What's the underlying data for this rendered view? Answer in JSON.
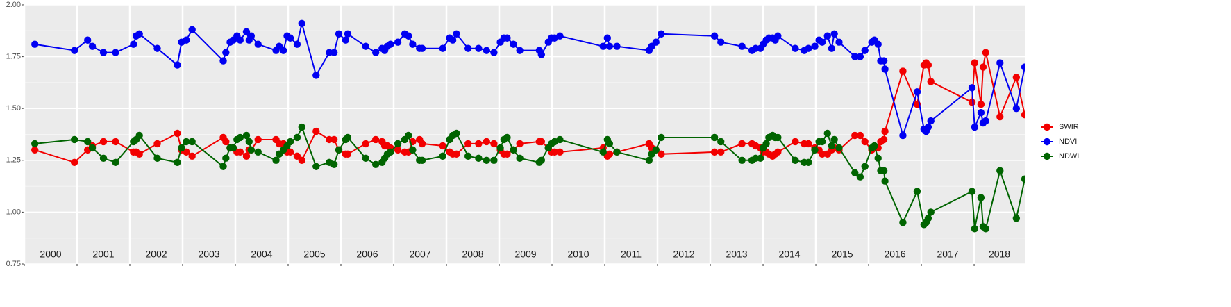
{
  "chart_data": {
    "type": "line",
    "x": [
      2000.2,
      2000.95,
      2001.2,
      2001.29,
      2001.5,
      2001.73,
      2002.07,
      2002.12,
      2002.18,
      2002.52,
      2002.9,
      2002.98,
      2003.07,
      2003.18,
      2003.77,
      2003.82,
      2003.9,
      2003.96,
      2004.03,
      2004.09,
      2004.21,
      2004.26,
      2004.3,
      2004.43,
      2004.77,
      2004.83,
      2004.91,
      2004.98,
      2005.04,
      2005.17,
      2005.26,
      2005.53,
      2005.78,
      2005.87,
      2005.96,
      2006.09,
      2006.13,
      2006.47,
      2006.66,
      2006.78,
      2006.83,
      2006.88,
      2006.94,
      2007.08,
      2007.21,
      2007.28,
      2007.36,
      2007.49,
      2007.54,
      2007.93,
      2008.06,
      2008.12,
      2008.19,
      2008.41,
      2008.61,
      2008.76,
      2008.9,
      2009.02,
      2009.09,
      2009.15,
      2009.27,
      2009.39,
      2009.76,
      2009.8,
      2009.93,
      2009.99,
      2010.05,
      2010.15,
      2010.97,
      2011.05,
      2011.09,
      2011.23,
      2011.84,
      2011.89,
      2011.97,
      2012.07,
      2013.08,
      2013.2,
      2013.6,
      2013.79,
      2013.86,
      2013.95,
      2014.0,
      2014.06,
      2014.11,
      2014.18,
      2014.23,
      2014.28,
      2014.61,
      2014.78,
      2014.86,
      2014.98,
      2015.06,
      2015.12,
      2015.22,
      2015.3,
      2015.35,
      2015.44,
      2015.74,
      2015.84,
      2015.93,
      2016.06,
      2016.11,
      2016.18,
      2016.23,
      2016.29,
      2016.31,
      2016.65,
      2016.92,
      2017.05,
      2017.09,
      2017.13,
      2017.18,
      2017.96,
      2018.01,
      2018.13,
      2018.17,
      2018.22,
      2018.49,
      2018.8,
      2018.96
    ],
    "series": [
      {
        "name": "SWIR",
        "color": "#f20000",
        "values": [
          1.3,
          1.24,
          1.3,
          1.32,
          1.34,
          1.34,
          1.29,
          1.29,
          1.28,
          1.33,
          1.38,
          1.3,
          1.29,
          1.27,
          1.36,
          1.34,
          1.31,
          1.31,
          1.29,
          1.29,
          1.27,
          1.3,
          1.3,
          1.35,
          1.35,
          1.33,
          1.33,
          1.29,
          1.29,
          1.27,
          1.25,
          1.39,
          1.35,
          1.35,
          1.3,
          1.28,
          1.28,
          1.33,
          1.35,
          1.34,
          1.32,
          1.32,
          1.31,
          1.3,
          1.29,
          1.29,
          1.34,
          1.35,
          1.33,
          1.32,
          1.29,
          1.28,
          1.28,
          1.33,
          1.33,
          1.34,
          1.33,
          1.3,
          1.28,
          1.28,
          1.3,
          1.33,
          1.34,
          1.34,
          1.31,
          1.29,
          1.29,
          1.29,
          1.31,
          1.27,
          1.28,
          1.29,
          1.33,
          1.31,
          1.3,
          1.28,
          1.29,
          1.29,
          1.33,
          1.33,
          1.32,
          1.31,
          1.29,
          1.29,
          1.28,
          1.27,
          1.28,
          1.29,
          1.34,
          1.33,
          1.33,
          1.31,
          1.3,
          1.28,
          1.28,
          1.3,
          1.31,
          1.3,
          1.37,
          1.37,
          1.34,
          1.3,
          1.31,
          1.31,
          1.34,
          1.35,
          1.39,
          1.68,
          1.52,
          1.71,
          1.72,
          1.71,
          1.63,
          1.53,
          1.72,
          1.52,
          1.7,
          1.77,
          1.46,
          1.65,
          1.47
        ]
      },
      {
        "name": "NDVI",
        "color": "#0000f2",
        "values": [
          1.81,
          1.78,
          1.83,
          1.8,
          1.77,
          1.77,
          1.81,
          1.85,
          1.86,
          1.79,
          1.71,
          1.82,
          1.83,
          1.88,
          1.73,
          1.77,
          1.82,
          1.83,
          1.85,
          1.83,
          1.87,
          1.83,
          1.85,
          1.81,
          1.78,
          1.8,
          1.78,
          1.85,
          1.84,
          1.81,
          1.91,
          1.66,
          1.77,
          1.77,
          1.86,
          1.83,
          1.86,
          1.8,
          1.77,
          1.79,
          1.78,
          1.8,
          1.81,
          1.82,
          1.86,
          1.85,
          1.81,
          1.79,
          1.79,
          1.79,
          1.84,
          1.83,
          1.86,
          1.79,
          1.79,
          1.78,
          1.77,
          1.82,
          1.84,
          1.84,
          1.81,
          1.78,
          1.78,
          1.76,
          1.82,
          1.84,
          1.84,
          1.85,
          1.8,
          1.84,
          1.8,
          1.8,
          1.78,
          1.8,
          1.82,
          1.86,
          1.85,
          1.82,
          1.8,
          1.78,
          1.79,
          1.79,
          1.81,
          1.83,
          1.84,
          1.84,
          1.83,
          1.85,
          1.79,
          1.78,
          1.79,
          1.8,
          1.83,
          1.82,
          1.85,
          1.79,
          1.86,
          1.82,
          1.75,
          1.75,
          1.78,
          1.82,
          1.83,
          1.81,
          1.73,
          1.73,
          1.69,
          1.37,
          1.58,
          1.4,
          1.39,
          1.41,
          1.44,
          1.6,
          1.41,
          1.48,
          1.43,
          1.44,
          1.72,
          1.5,
          1.7
        ]
      },
      {
        "name": "NDWI",
        "color": "#006400",
        "values": [
          1.33,
          1.35,
          1.34,
          1.31,
          1.26,
          1.24,
          1.34,
          1.35,
          1.37,
          1.26,
          1.24,
          1.31,
          1.34,
          1.34,
          1.22,
          1.26,
          1.31,
          1.31,
          1.35,
          1.36,
          1.37,
          1.34,
          1.3,
          1.29,
          1.25,
          1.28,
          1.3,
          1.32,
          1.34,
          1.36,
          1.41,
          1.22,
          1.24,
          1.23,
          1.3,
          1.35,
          1.36,
          1.26,
          1.23,
          1.24,
          1.26,
          1.28,
          1.29,
          1.33,
          1.35,
          1.37,
          1.3,
          1.25,
          1.25,
          1.27,
          1.35,
          1.37,
          1.38,
          1.27,
          1.26,
          1.25,
          1.25,
          1.31,
          1.35,
          1.36,
          1.3,
          1.26,
          1.24,
          1.25,
          1.31,
          1.33,
          1.34,
          1.35,
          1.29,
          1.35,
          1.33,
          1.29,
          1.25,
          1.28,
          1.3,
          1.36,
          1.36,
          1.34,
          1.25,
          1.25,
          1.26,
          1.26,
          1.31,
          1.33,
          1.36,
          1.37,
          1.36,
          1.36,
          1.25,
          1.24,
          1.24,
          1.3,
          1.34,
          1.34,
          1.38,
          1.32,
          1.35,
          1.31,
          1.19,
          1.17,
          1.22,
          1.31,
          1.32,
          1.26,
          1.2,
          1.2,
          1.15,
          0.95,
          1.1,
          0.94,
          0.95,
          0.97,
          1.0,
          1.1,
          0.92,
          1.07,
          0.93,
          0.92,
          1.2,
          0.97,
          1.16
        ]
      }
    ],
    "xlim": [
      2000,
      2018.96
    ],
    "xticks": [
      2000,
      2001,
      2002,
      2003,
      2004,
      2005,
      2006,
      2007,
      2008,
      2009,
      2010,
      2011,
      2012,
      2013,
      2014,
      2015,
      2016,
      2017,
      2018
    ],
    "ylim": [
      0.75,
      2.0
    ],
    "yticks": [
      0.75,
      {
        "value": 1,
        "label": "1.00"
      },
      1.25,
      {
        "value": 1.5,
        "label": "1.50"
      },
      1.75,
      {
        "value": 2,
        "label": "2.00"
      }
    ],
    "grid": true,
    "legend": "right"
  }
}
